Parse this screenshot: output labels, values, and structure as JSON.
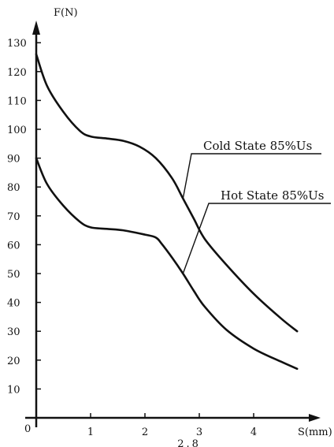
{
  "chart_data": {
    "type": "line",
    "title": "",
    "xlabel": "S(mm)",
    "ylabel": "F(N)",
    "origin_label": "0",
    "xlim": [
      0,
      5
    ],
    "ylim": [
      0,
      140
    ],
    "xticks": [
      1,
      2,
      3,
      4
    ],
    "yticks": [
      10,
      20,
      30,
      40,
      50,
      60,
      70,
      80,
      90,
      100,
      110,
      120,
      130
    ],
    "grid": false,
    "colors": {
      "axis": "#111111",
      "curve": "#111111"
    },
    "extra_x_tick": {
      "value": 2.8,
      "label": "2.8"
    },
    "series": [
      {
        "name": "Cold State 85%Us",
        "x": [
          0,
          0.2,
          0.5,
          0.8,
          1.0,
          1.3,
          1.6,
          1.9,
          2.2,
          2.5,
          2.7,
          2.9,
          3.1,
          3.5,
          4.0,
          4.5,
          4.8
        ],
        "y": [
          126,
          115,
          106,
          99.5,
          97.5,
          96.8,
          96,
          94,
          90,
          83,
          76,
          69,
          62,
          53,
          43,
          34.5,
          30
        ]
      },
      {
        "name": "Hot State 85%Us",
        "x": [
          0,
          0.2,
          0.5,
          0.8,
          1.0,
          1.3,
          1.6,
          2.0,
          2.2,
          2.3,
          2.5,
          2.7,
          2.9,
          3.1,
          3.5,
          4.0,
          4.5,
          4.8
        ],
        "y": [
          90,
          81,
          73.5,
          68,
          66,
          65.5,
          65,
          63.5,
          62.5,
          60.5,
          55.5,
          50,
          44,
          38.5,
          30.5,
          24,
          19.5,
          17
        ]
      }
    ],
    "annotations": [
      {
        "text": "Cold State 85%Us",
        "series": 0,
        "at_x": 2.7
      },
      {
        "text": "Hot State 85%Us",
        "series": 1,
        "at_x": 2.7
      }
    ]
  }
}
